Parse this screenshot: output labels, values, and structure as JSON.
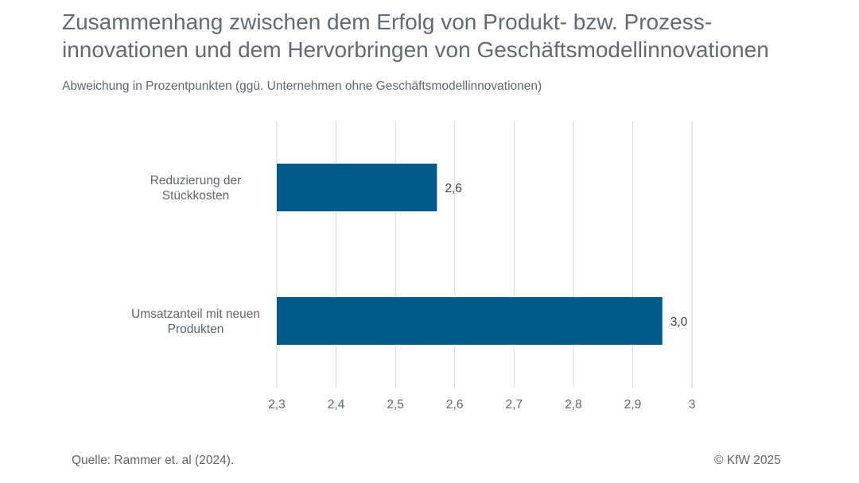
{
  "chart_data": {
    "type": "bar",
    "orientation": "horizontal",
    "title_line1": "Zusammenhang zwischen dem Erfolg von Produkt- bzw. Prozess-",
    "title_line2": "innovationen und dem Hervorbringen von Geschäftsmodellinnovationen",
    "subtitle": "Abweichung in Prozentpunkten (ggü. Unternehmen ohne Geschäftsmodellinnovationen)",
    "categories": [
      [
        "Reduzierung der",
        "Stückkosten"
      ],
      [
        "Umsatzanteil mit neuen",
        "Produkten"
      ]
    ],
    "values": [
      2.57,
      2.95
    ],
    "value_labels": [
      "2,6",
      "3,0"
    ],
    "xlim": [
      2.3,
      3.0
    ],
    "ticks": [
      2.3,
      2.4,
      2.5,
      2.6,
      2.7,
      2.8,
      2.9,
      3.0
    ],
    "tick_labels": [
      "2,3",
      "2,4",
      "2,5",
      "2,6",
      "2,7",
      "2,8",
      "2,9",
      "3"
    ],
    "grid": true,
    "bar_color": "#005a8c",
    "grid_color": "#d9d9d9"
  },
  "footer": {
    "source": "Quelle: Rammer et. al (2024).",
    "copyright": "© KfW 2025"
  }
}
